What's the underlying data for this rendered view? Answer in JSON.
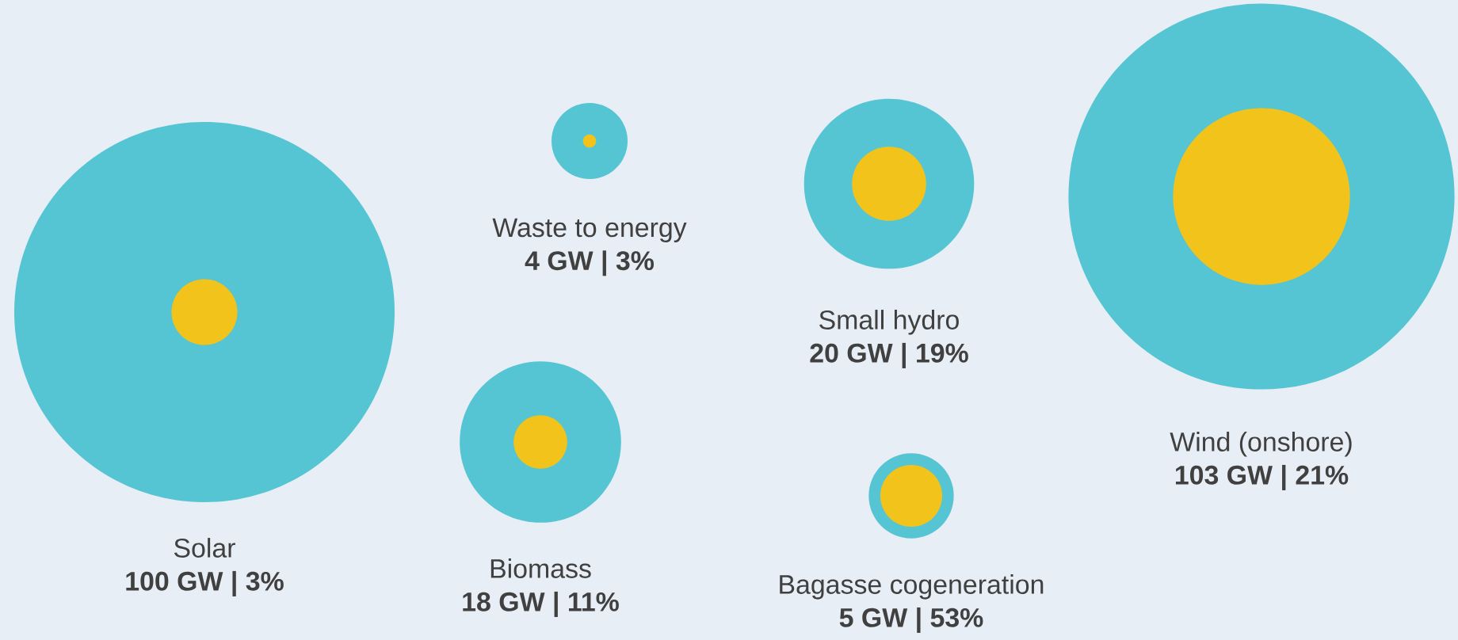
{
  "chart_data": {
    "type": "other",
    "categories": [
      "Solar",
      "Waste to energy",
      "Biomass",
      "Small hydro",
      "Bagasse cogeneration",
      "Wind (onshore)"
    ],
    "series": [
      {
        "color": "#56c5d3",
        "values": [
          100,
          4,
          18,
          20,
          5,
          103
        ],
        "value_labels": [
          "100 GW |",
          "4 GW |",
          "18 GW |",
          "20 GW |",
          "5 GW |",
          "103 GW |"
        ]
      },
      {
        "color": "#f2c31b",
        "values": [
          3,
          3,
          11,
          19,
          53,
          21
        ],
        "value_labels": [
          "3%",
          "3%",
          "11%",
          "19%",
          "53%",
          "21%"
        ]
      }
    ]
  }
}
